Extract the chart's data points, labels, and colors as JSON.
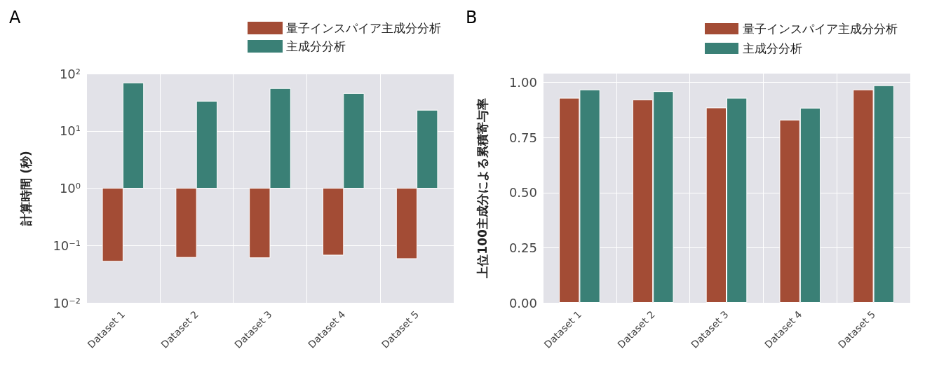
{
  "chart_data": [
    {
      "type": "bar",
      "title": "A",
      "ylabel": "計算時間 (秒)",
      "log": true,
      "ylim": [
        0.01,
        100
      ],
      "yticks": [
        {
          "value": 0.01,
          "label": "10⁻²"
        },
        {
          "value": 0.1,
          "label": "10⁻¹"
        },
        {
          "value": 1,
          "label": "10⁰"
        },
        {
          "value": 10,
          "label": "10¹"
        },
        {
          "value": 100,
          "label": "10²"
        }
      ],
      "categories": [
        "Dataset 1",
        "Dataset 2",
        "Dataset 3",
        "Dataset 4",
        "Dataset 5"
      ],
      "series": [
        {
          "name": "量子インスパイア主成分分析",
          "color": "#a34c35",
          "base": [
            1,
            1,
            1,
            1,
            1
          ],
          "values": [
            -0.947,
            -0.938,
            -0.939,
            -0.932,
            -0.941
          ]
        },
        {
          "name": "主成分分析",
          "color": "#3a8076",
          "base": [
            1,
            1,
            1,
            1,
            1
          ],
          "values": [
            68,
            32,
            54,
            44,
            22
          ]
        }
      ],
      "grid": true,
      "legend": "top right"
    },
    {
      "type": "bar",
      "title": "B",
      "ylabel": "上位100主成分による累積寄与率",
      "ylim": [
        0,
        1.04
      ],
      "yticks": [
        {
          "value": 0,
          "label": "0.00"
        },
        0.25,
        {
          "value": 0.5,
          "label": "0.50"
        },
        0.75,
        {
          "value": 1,
          "label": "1.00"
        }
      ],
      "categories": [
        "Dataset 1",
        "Dataset 2",
        "Dataset 3",
        "Dataset 4",
        "Dataset 5"
      ],
      "series": [
        {
          "name": "量子インスパイア主成分分析",
          "color": "#a34c35",
          "values": [
            0.93,
            0.922,
            0.886,
            0.831,
            0.968
          ]
        },
        {
          "name": "主成分分析",
          "color": "#3a8076",
          "values": [
            0.968,
            0.96,
            0.93,
            0.885,
            0.987
          ]
        }
      ],
      "grid": true,
      "legend": "top right"
    }
  ]
}
